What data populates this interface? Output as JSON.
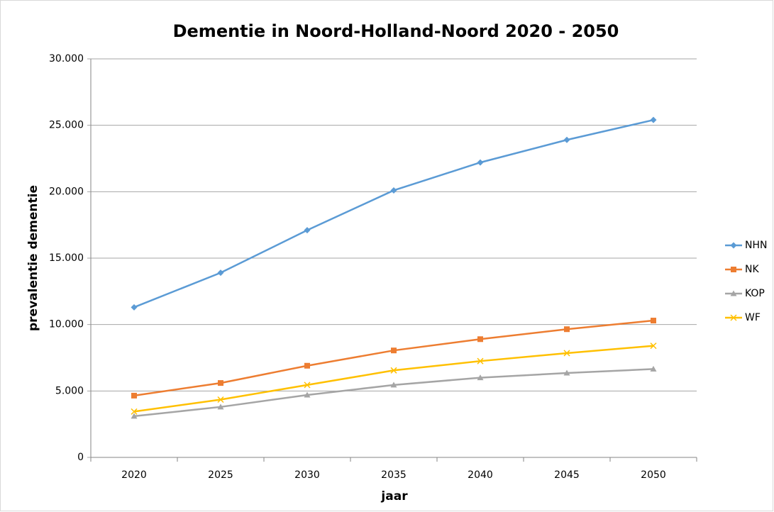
{
  "chart_data": {
    "type": "line",
    "title": "Dementie in Noord-Holland-Noord  2020 - 2050",
    "x_label": "jaar",
    "y_label": "prevalentie dementie",
    "categories": [
      "2020",
      "2025",
      "2030",
      "2035",
      "2040",
      "2045",
      "2050"
    ],
    "series": [
      {
        "name": "NHN",
        "color": "#5b9bd5",
        "marker": "diamond",
        "values": [
          11300,
          13900,
          17100,
          20100,
          22200,
          23900,
          25400
        ]
      },
      {
        "name": "NK",
        "color": "#ed7d31",
        "marker": "square",
        "values": [
          4650,
          5600,
          6900,
          8050,
          8900,
          9650,
          10300
        ]
      },
      {
        "name": "KOP",
        "color": "#a5a5a5",
        "marker": "triangle",
        "values": [
          3100,
          3800,
          4700,
          5450,
          6000,
          6350,
          6650
        ]
      },
      {
        "name": "WF",
        "color": "#ffc000",
        "marker": "x",
        "values": [
          3450,
          4350,
          5450,
          6550,
          7250,
          7850,
          8400
        ]
      }
    ],
    "ylim": [
      0,
      30000
    ],
    "yticks": [
      0,
      {
        "value": 5000,
        "label": "5.000"
      },
      {
        "value": 10000,
        "label": "10.000"
      },
      {
        "value": 15000,
        "label": "15.000"
      },
      {
        "value": 20000,
        "label": "20.000"
      },
      {
        "value": 25000,
        "label": "25.000"
      },
      {
        "value": 30000,
        "label": "30.000"
      }
    ],
    "grid": true,
    "legend": "right"
  }
}
